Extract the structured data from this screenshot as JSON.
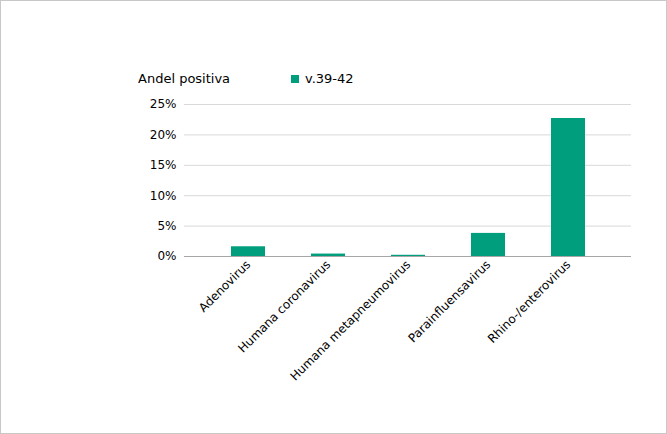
{
  "chart_data": {
    "type": "bar",
    "y_label": "Andel positiva",
    "categories": [
      "Adenovirus",
      "Humana coronavirus",
      "Humana metapneumovirus",
      "Parainfluensavirus",
      "Rhino-/enterovirus"
    ],
    "series": [
      {
        "name": "v.39-42",
        "color": "#009e7c",
        "values": [
          1.6,
          0.4,
          0.2,
          3.8,
          22.7
        ]
      }
    ],
    "ylim": [
      0,
      25
    ],
    "yticks": [
      {
        "value": 0,
        "label": "0%"
      },
      {
        "value": 5,
        "label": "5%"
      },
      {
        "value": 10,
        "label": "10%"
      },
      {
        "value": 15,
        "label": "15%"
      },
      {
        "value": 20,
        "label": "20%"
      },
      {
        "value": 25,
        "label": "25%"
      }
    ],
    "grid": true,
    "legend": "top"
  }
}
